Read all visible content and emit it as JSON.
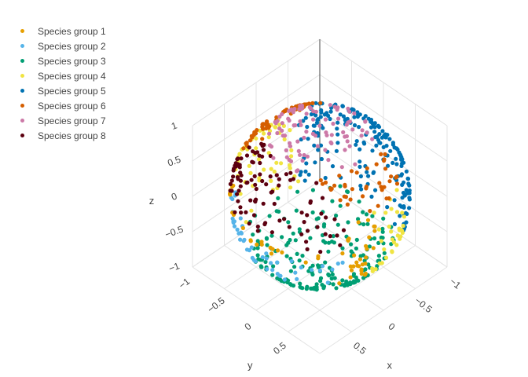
{
  "chart_data": {
    "type": "scatter3d",
    "axes": {
      "x": {
        "title": "x",
        "range": [
          -1,
          1
        ],
        "ticks": [
          "−1",
          "−0.5",
          "0",
          "0.5"
        ]
      },
      "y": {
        "title": "y",
        "range": [
          -1,
          1
        ],
        "ticks": [
          "−1",
          "−0.5",
          "0",
          "0.5"
        ]
      },
      "z": {
        "title": "z",
        "range": [
          -1,
          1
        ],
        "ticks": [
          "−1",
          "−0.5",
          "0",
          "0.5",
          "1"
        ]
      }
    },
    "grid": true,
    "legend_position": "top-left",
    "points_per_series": 110,
    "series": [
      {
        "name": "Species group 1",
        "color": "#E69F00",
        "region": "x>0.5 side"
      },
      {
        "name": "Species group 2",
        "color": "#56B4E9",
        "region": "x>0.5, z<0"
      },
      {
        "name": "Species group 3",
        "color": "#009E73",
        "region": "z<-0.5"
      },
      {
        "name": "Species group 4",
        "color": "#F0E442",
        "region": "interior / front"
      },
      {
        "name": "Species group 5",
        "color": "#0072B2",
        "region": "x<-0.5 side"
      },
      {
        "name": "Species group 6",
        "color": "#D55E00",
        "region": "z>0.5, x<0"
      },
      {
        "name": "Species group 7",
        "color": "#CC79A7",
        "region": "z>0.8 top cap"
      },
      {
        "name": "Species group 8",
        "color": "#5C0010",
        "region": "z>0, x>0.5"
      }
    ]
  }
}
